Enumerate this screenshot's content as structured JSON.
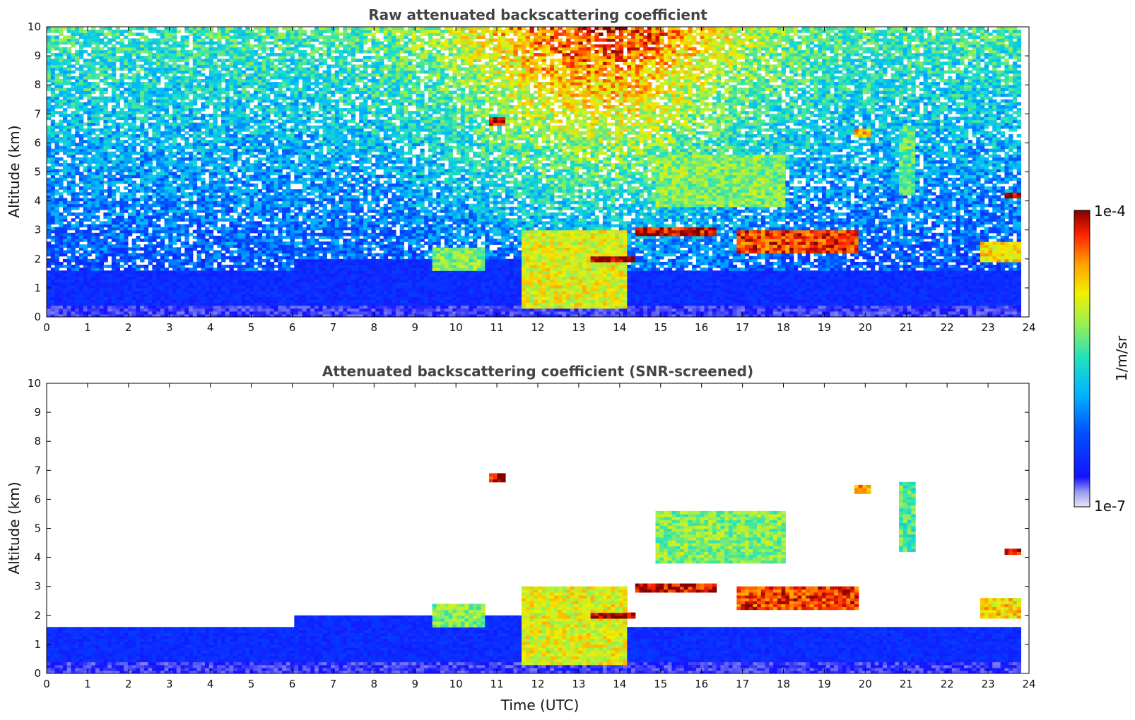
{
  "chart_data": [
    {
      "type": "heatmap",
      "title": "Raw attenuated backscattering coefficient",
      "xlabel": "",
      "ylabel": "Altitude (km)",
      "xlim": [
        0,
        24
      ],
      "ylim": [
        0,
        10
      ],
      "xticks": [
        "0",
        "1",
        "2",
        "3",
        "4",
        "5",
        "6",
        "7",
        "8",
        "9",
        "10",
        "11",
        "12",
        "13",
        "14",
        "15",
        "16",
        "17",
        "18",
        "19",
        "20",
        "21",
        "22",
        "23",
        "24"
      ],
      "yticks": [
        "0",
        "1",
        "2",
        "3",
        "4",
        "5",
        "6",
        "7",
        "8",
        "9",
        "10"
      ],
      "data_end_time": 23.8,
      "colormap": "jet",
      "color_scale": "log",
      "cloud_layers": [
        {
          "t_start": 9.4,
          "t_end": 10.7,
          "alt_low": 1.6,
          "alt_high": 2.4,
          "level": 0.6
        },
        {
          "t_start": 11.6,
          "t_end": 14.2,
          "alt_low": 0.3,
          "alt_high": 3.0,
          "level": 0.7
        },
        {
          "t_start": 13.3,
          "t_end": 14.4,
          "alt_low": 1.9,
          "alt_high": 2.1,
          "level": 1.0
        },
        {
          "t_start": 14.4,
          "t_end": 16.4,
          "alt_low": 2.8,
          "alt_high": 3.1,
          "level": 0.95
        },
        {
          "t_start": 16.9,
          "t_end": 19.8,
          "alt_low": 2.2,
          "alt_high": 3.0,
          "level": 0.9
        },
        {
          "t_start": 10.8,
          "t_end": 11.2,
          "alt_low": 6.6,
          "alt_high": 6.9,
          "level": 0.95
        },
        {
          "t_start": 19.7,
          "t_end": 20.1,
          "alt_low": 6.2,
          "alt_high": 6.5,
          "level": 0.8
        },
        {
          "t_start": 20.8,
          "t_end": 21.2,
          "alt_low": 4.2,
          "alt_high": 6.6,
          "level": 0.55
        },
        {
          "t_start": 23.4,
          "t_end": 23.8,
          "alt_low": 4.1,
          "alt_high": 4.3,
          "level": 0.95
        },
        {
          "t_start": 22.8,
          "t_end": 23.8,
          "alt_low": 1.9,
          "alt_high": 2.6,
          "level": 0.75
        },
        {
          "t_start": 14.9,
          "t_end": 18.0,
          "alt_low": 3.8,
          "alt_high": 5.6,
          "level": 0.6
        }
      ]
    },
    {
      "type": "heatmap",
      "title": "Attenuated backscattering coefficient (SNR-screened)",
      "xlabel": "Time (UTC)",
      "ylabel": "Altitude (km)",
      "xlim": [
        0,
        24
      ],
      "ylim": [
        0,
        10
      ],
      "xticks": [
        "0",
        "1",
        "2",
        "3",
        "4",
        "5",
        "6",
        "7",
        "8",
        "9",
        "10",
        "11",
        "12",
        "13",
        "14",
        "15",
        "16",
        "17",
        "18",
        "19",
        "20",
        "21",
        "22",
        "23",
        "24"
      ],
      "yticks": [
        "0",
        "1",
        "2",
        "3",
        "4",
        "5",
        "6",
        "7",
        "8",
        "9",
        "10"
      ],
      "data_end_time": 23.8,
      "colormap": "jet",
      "color_scale": "log",
      "screening": "SNR"
    }
  ],
  "colorbar": {
    "max_label": "1e-4",
    "min_label": "1e-7",
    "unit_label": "1/m/sr",
    "min_color": "#e8e8f8",
    "max_color": "#800000"
  }
}
